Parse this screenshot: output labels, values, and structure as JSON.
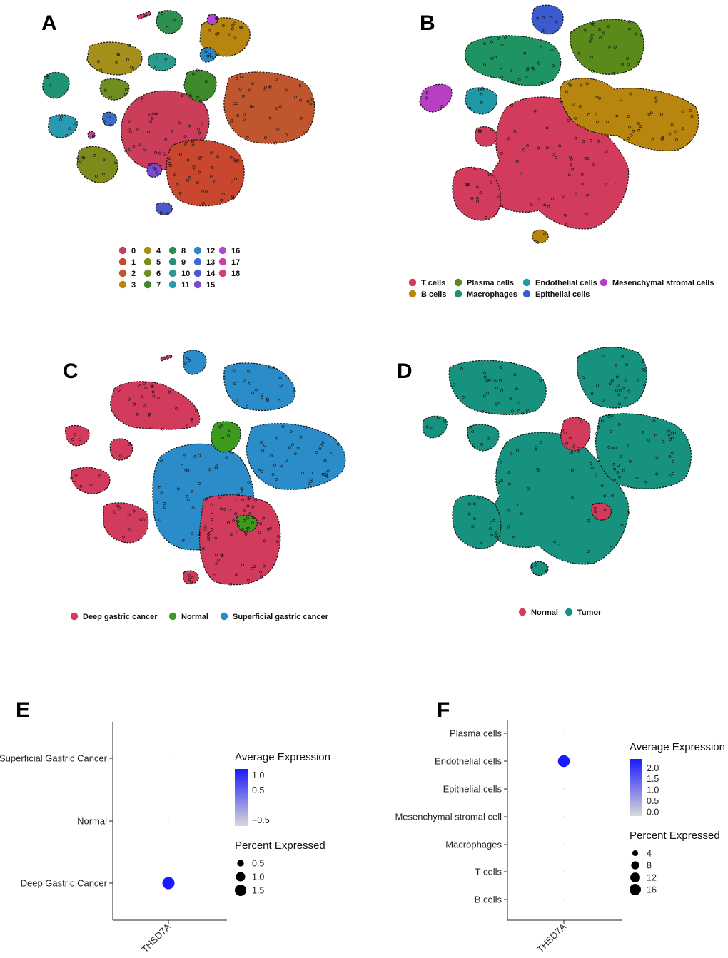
{
  "panels": [
    {
      "id": "A",
      "label": "A",
      "type": "tsne-cluster",
      "legend": [
        "0",
        "1",
        "2",
        "3",
        "4",
        "5",
        "6",
        "7",
        "8",
        "9",
        "10",
        "11",
        "12",
        "13",
        "14",
        "15",
        "16",
        "17",
        "18"
      ],
      "colors": [
        "#cc3d5a",
        "#c9472f",
        "#c0562e",
        "#b8860f",
        "#a48f1a",
        "#7f8a1c",
        "#6e8f1f",
        "#3e8a2a",
        "#2f8f4f",
        "#1f9474",
        "#2a9c8e",
        "#2a9ab0",
        "#2a86c4",
        "#3a6ecc",
        "#4a5ac8",
        "#7a4bd0",
        "#b24ad0",
        "#c940a8",
        "#d23d7c"
      ]
    },
    {
      "id": "B",
      "label": "B",
      "type": "tsne-celltype",
      "legend": [
        "T cells",
        "B cells",
        "Plasma cells",
        "Macrophages",
        "Endothelial cells",
        "Epithelial cells",
        "Mesenchymal stromal cells"
      ],
      "colors": [
        "#d33b5c",
        "#b8860f",
        "#5a8a1a",
        "#1f9463",
        "#1f98a8",
        "#3a5bd0",
        "#b63fc4"
      ]
    },
    {
      "id": "C",
      "label": "C",
      "type": "tsne-group",
      "legend": [
        "Deep gastric cancer",
        "Normal",
        "Superficial gastric cancer"
      ],
      "colors": [
        "#d33b5c",
        "#3d9a1e",
        "#2a8cc8"
      ]
    },
    {
      "id": "D",
      "label": "D",
      "type": "tsne-group",
      "legend": [
        "Normal",
        "Tumor"
      ],
      "colors": [
        "#d33b5c",
        "#16927e"
      ]
    }
  ],
  "chart_data": [
    {
      "panel": "E",
      "type": "dotplot",
      "gene": "THSD7A",
      "categories": [
        "Superficial Gastric Cancer",
        "Normal",
        "Deep Gastric Cancer"
      ],
      "avg_expression": [
        -0.7,
        -0.7,
        1.15
      ],
      "pct_expressed": [
        0.0,
        0.0,
        1.7
      ],
      "color_legend": {
        "title": "Average Expression",
        "ticks": [
          1.0,
          0.5,
          -0.5
        ],
        "tick_labels": [
          "1.0",
          "0.5",
          "−0.5"
        ],
        "low_color": "#d9d9d9",
        "high_color": "#1a1aff"
      },
      "size_legend": {
        "title": "Percent Expressed",
        "ticks": [
          0.5,
          1.0,
          1.5
        ],
        "tick_labels": [
          "0.5",
          "1.0",
          "1.5"
        ]
      }
    },
    {
      "panel": "F",
      "type": "dotplot",
      "gene": "THSD7A",
      "categories": [
        "Plasma cells",
        "Endothelial cells",
        "Epithelial cells",
        "Mesenchymal stromal cell",
        "Macrophages",
        "T cells",
        "B cells"
      ],
      "avg_expression": [
        -0.1,
        2.3,
        -0.1,
        -0.1,
        -0.1,
        -0.1,
        -0.1
      ],
      "pct_expressed": [
        0.0,
        17.0,
        0.0,
        0.0,
        0.0,
        0.0,
        0.0
      ],
      "color_legend": {
        "title": "Average Expression",
        "ticks": [
          2.0,
          1.5,
          1.0,
          0.5,
          0.0
        ],
        "tick_labels": [
          "2.0",
          "1.5",
          "1.0",
          "0.5",
          "0.0"
        ],
        "low_color": "#d9d9d9",
        "high_color": "#1a1aff"
      },
      "size_legend": {
        "title": "Percent Expressed",
        "ticks": [
          4,
          8,
          12,
          16
        ],
        "tick_labels": [
          "4",
          "8",
          "12",
          "16"
        ]
      }
    }
  ],
  "panel_labels": {
    "E": "E",
    "F": "F"
  }
}
